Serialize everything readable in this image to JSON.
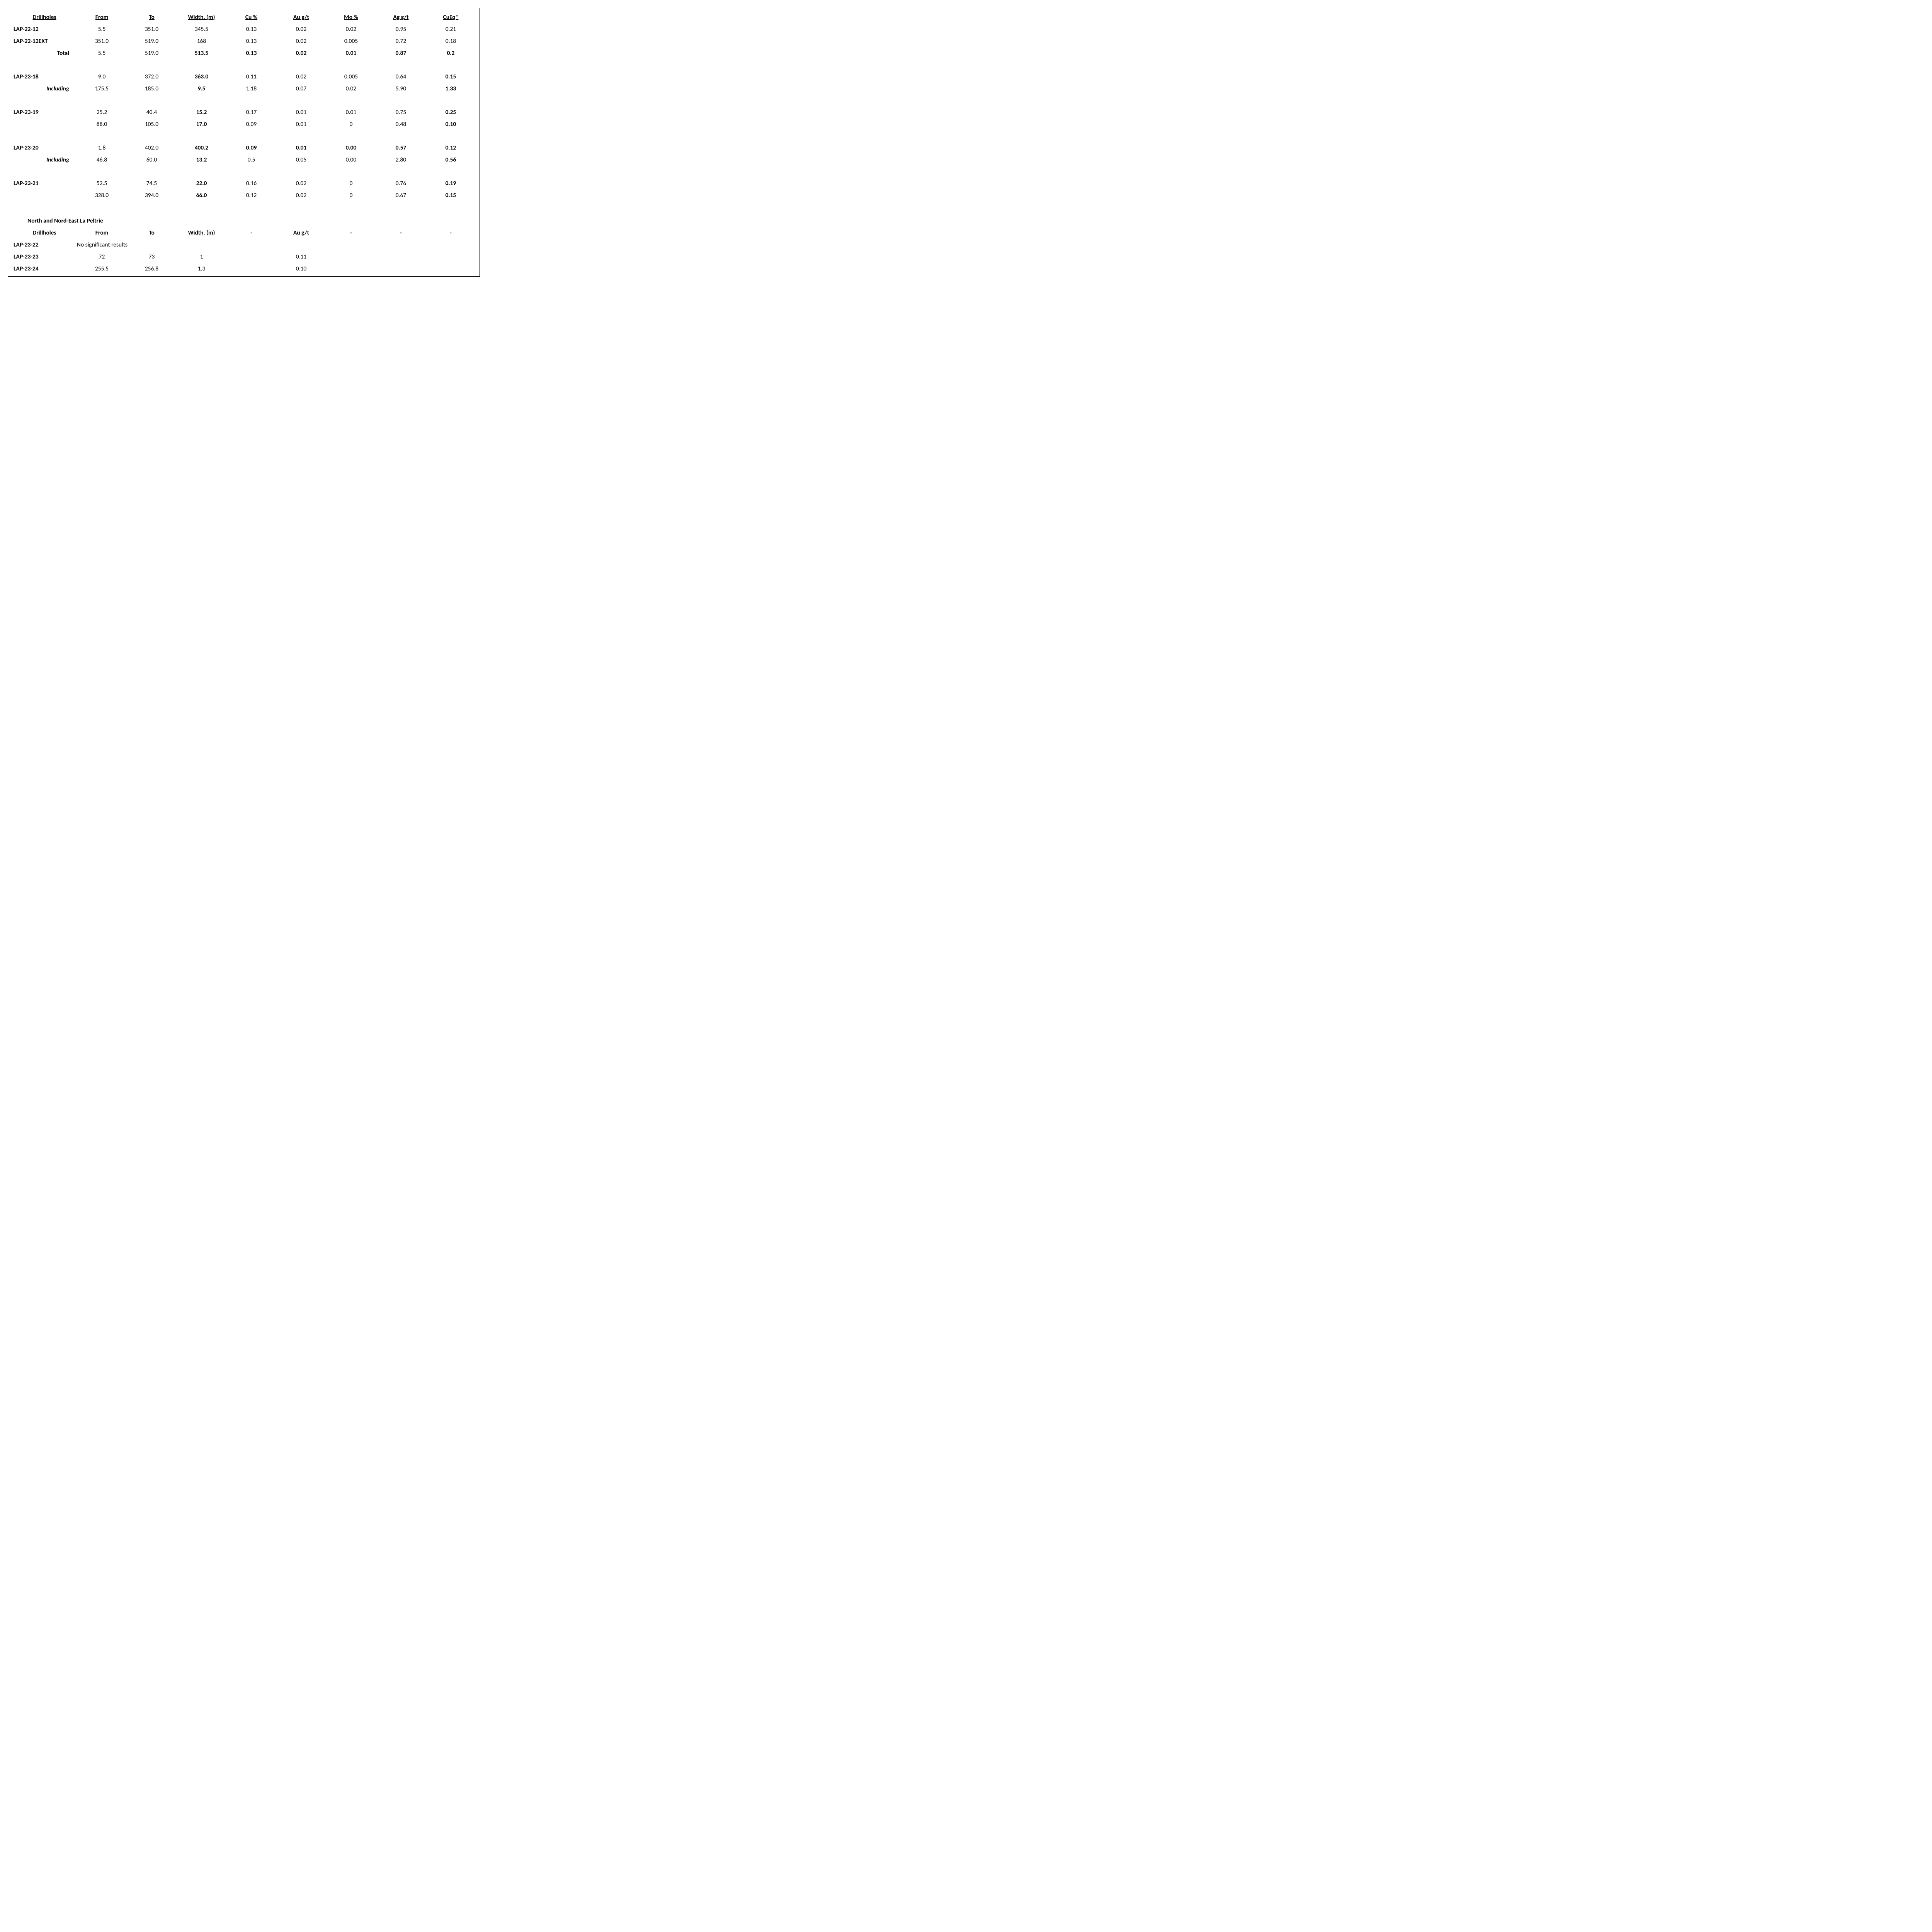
{
  "headers1": {
    "drillholes": "Drillholes",
    "from": "From",
    "to": "To",
    "width": "Width. (m)",
    "cu": "Cu %",
    "au": "Au g/t",
    "mo": "Mo %",
    "ag": "Ag g/t",
    "cueq": "CuEq*"
  },
  "rows1": [
    {
      "label": "LAP-22-12",
      "labelClass": "label",
      "from": "5.5",
      "to": "351.0",
      "width": "345.5",
      "cu": "0.13",
      "au": "0.02",
      "mo": "0.02",
      "ag": "0.95",
      "cueq": "0.21"
    },
    {
      "label": "LAP-22-12EXT",
      "labelClass": "label",
      "from": "351.0",
      "to": "519.0",
      "width": "168",
      "cu": "0.13",
      "au": "0.02",
      "mo": "0.005",
      "ag": "0.72",
      "cueq": "0.18"
    },
    {
      "label": "Total",
      "labelClass": "label-right",
      "from": "5.5",
      "to": "519.0",
      "width": "513.5",
      "cu": "0.13",
      "au": "0.02",
      "mo": "0.01",
      "ag": "0.87",
      "cueq": "0.2",
      "boldCols": [
        "width",
        "cu",
        "au",
        "mo",
        "ag",
        "cueq"
      ]
    },
    {
      "spacer": true
    },
    {
      "label": "LAP-23-18",
      "labelClass": "label",
      "from": "9.0",
      "to": "372.0",
      "width": "363.0",
      "cu": "0.11",
      "au": "0.02",
      "mo": "0.005",
      "ag": "0.64",
      "cueq": "0.15",
      "boldCols": [
        "width",
        "cueq"
      ]
    },
    {
      "label": "Including",
      "labelClass": "label-italic",
      "from": "175.5",
      "to": "185.0",
      "width": "9.5",
      "cu": "1.18",
      "au": "0.07",
      "mo": "0.02",
      "ag": "5.90",
      "cueq": "1.33",
      "boldCols": [
        "width",
        "cueq"
      ]
    },
    {
      "spacer": true
    },
    {
      "label": "LAP-23-19",
      "labelClass": "label",
      "from": "25.2",
      "to": "40.4",
      "width": "15.2",
      "cu": "0.17",
      "au": "0.01",
      "mo": "0.01",
      "ag": "0.75",
      "cueq": "0.25",
      "boldCols": [
        "width",
        "cueq"
      ]
    },
    {
      "label": "",
      "labelClass": "label",
      "from": "88.0",
      "to": "105.0",
      "width": "17.0",
      "cu": "0.09",
      "au": "0.01",
      "mo": "0",
      "ag": "0.48",
      "cueq": "0.10",
      "boldCols": [
        "width",
        "cueq"
      ]
    },
    {
      "spacer": true
    },
    {
      "label": "LAP-23-20",
      "labelClass": "label",
      "from": "1.8",
      "to": "402.0",
      "width": "400.2",
      "cu": "0.09",
      "au": "0.01",
      "mo": "0.00",
      "ag": "0.57",
      "cueq": "0.12",
      "boldCols": [
        "width",
        "cu",
        "au",
        "mo",
        "ag",
        "cueq"
      ]
    },
    {
      "label": "Including",
      "labelClass": "label-italic",
      "from": "46.8",
      "to": "60.0",
      "width": "13.2",
      "cu": "0.5",
      "au": "0.05",
      "mo": "0.00",
      "ag": "2.80",
      "cueq": "0.56",
      "boldCols": [
        "width",
        "cueq"
      ]
    },
    {
      "spacer": true
    },
    {
      "label": "LAP-23-21",
      "labelClass": "label",
      "from": "52.5",
      "to": "74.5",
      "width": "22.0",
      "cu": "0.16",
      "au": "0.02",
      "mo": "0",
      "ag": "0.76",
      "cueq": "0.19",
      "boldCols": [
        "width",
        "cueq"
      ]
    },
    {
      "label": "",
      "labelClass": "label",
      "from": "328.0",
      "to": "394.0",
      "width": "66.0",
      "cu": "0.12",
      "au": "0.02",
      "mo": "0",
      "ag": "0.67",
      "cueq": "0.15",
      "boldCols": [
        "width",
        "cueq"
      ]
    }
  ],
  "section2": {
    "title": "North and Nord-East La Peltrie",
    "headers": {
      "drillholes": "Drillholes",
      "from": "From",
      "to": "To",
      "width": "Width. (m)",
      "au": "Au g/t"
    },
    "rows": [
      {
        "label": "LAP-23-22",
        "nosig": "No significant results"
      },
      {
        "label": "LAP-23-23",
        "from": "72",
        "to": "73",
        "width": "1",
        "au": "0.11"
      },
      {
        "label": "LAP-23-24",
        "from": "255.5",
        "to": "256.8",
        "width": "1.3",
        "au": "0.10"
      }
    ]
  },
  "dash": "-"
}
